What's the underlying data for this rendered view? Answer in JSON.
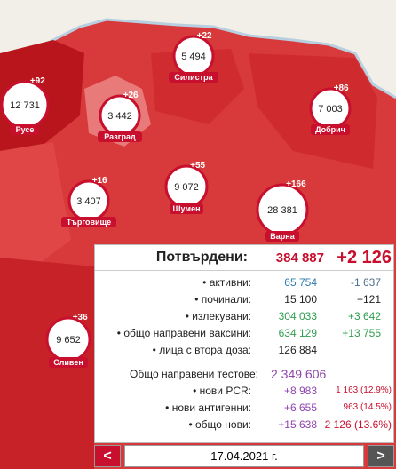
{
  "map": {
    "regions": [
      {
        "name": "Русе",
        "total": "12 731",
        "new": "+92"
      },
      {
        "name": "Разград",
        "total": "3 442",
        "new": "+26"
      },
      {
        "name": "Силистра",
        "total": "5 494",
        "new": "+22"
      },
      {
        "name": "Добрич",
        "total": "7 003",
        "new": "+86"
      },
      {
        "name": "Търговище",
        "total": "3 407",
        "new": "+16"
      },
      {
        "name": "Шумен",
        "total": "9 072",
        "new": "+55"
      },
      {
        "name": "Варна",
        "total": "28 381",
        "new": "+166"
      },
      {
        "name": "Сливен",
        "total": "9 652",
        "new": "+36"
      }
    ]
  },
  "panel": {
    "confirmed": {
      "label": "Потвърдени:",
      "total": "384 887",
      "new": "+2 126"
    },
    "rows": [
      {
        "label": "• активни:",
        "value": "65 754",
        "change": "-1 637"
      },
      {
        "label": "• починали:",
        "value": "15 100",
        "change": "+121"
      },
      {
        "label": "• излекувани:",
        "value": "304 033",
        "change": "+3 642"
      },
      {
        "label": "• общо направени ваксини:",
        "value": "634 129",
        "change": "+13 755"
      },
      {
        "label": "• лица с втора доза:",
        "value": "126 884"
      }
    ],
    "tests": {
      "label": "Общо направени тестове:",
      "total": "2 349 606"
    },
    "test_rows": [
      {
        "label": "• нови PCR:",
        "value": "+8 983",
        "positive": "1 163 (12.9%)"
      },
      {
        "label": "• нови антигенни:",
        "value": "+6 655",
        "positive": "963 (14.5%)"
      },
      {
        "label": "• общо нови:",
        "value": "+15 638",
        "positive": "2 126 (13.6%)"
      }
    ]
  },
  "nav": {
    "prev": "<",
    "date": "17.04.2021 г.",
    "next": ">"
  }
}
